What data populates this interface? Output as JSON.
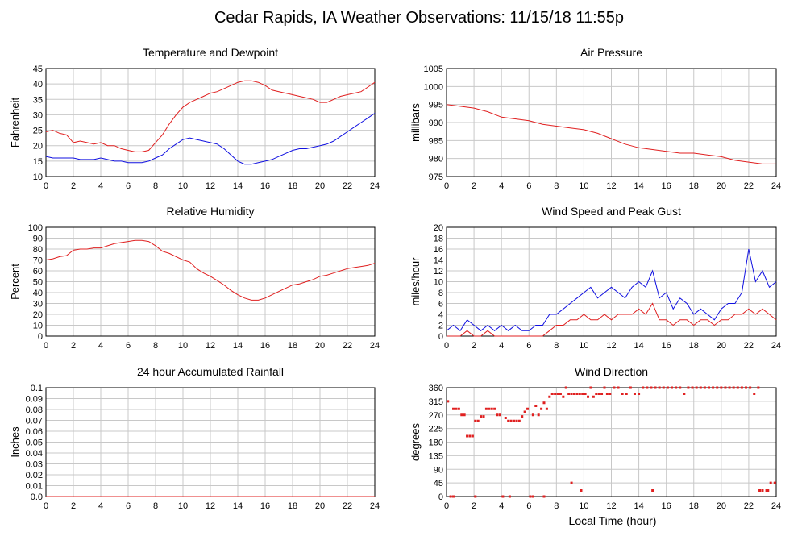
{
  "page": {
    "title": "Cedar Rapids, IA Weather Observations: 11/15/18 11:55p"
  },
  "colors": {
    "red": "#e02020",
    "blue": "#1010e0",
    "grid": "#c8c8c8",
    "frame": "#000000"
  },
  "xaxis_label": "Local Time (hour)",
  "chart_data": [
    {
      "id": "temp",
      "type": "line",
      "title": "Temperature and Dewpoint",
      "xlabel": "",
      "ylabel": "Fahrenheit",
      "xlim": [
        0,
        24
      ],
      "ylim": [
        10,
        45
      ],
      "xticks": [
        0,
        2,
        4,
        6,
        8,
        10,
        12,
        14,
        16,
        18,
        20,
        22,
        24
      ],
      "yticks": [
        10,
        15,
        20,
        25,
        30,
        35,
        40,
        45
      ],
      "series": [
        {
          "color": "#e02020",
          "x": [
            0,
            0.5,
            1,
            1.5,
            2,
            2.5,
            3,
            3.5,
            4,
            4.5,
            5,
            5.5,
            6,
            6.5,
            7,
            7.5,
            8,
            8.5,
            9,
            9.5,
            10,
            10.5,
            11,
            11.5,
            12,
            12.5,
            13,
            13.5,
            14,
            14.5,
            15,
            15.5,
            16,
            16.5,
            17,
            17.5,
            18,
            18.5,
            19,
            19.5,
            20,
            20.5,
            21,
            21.5,
            22,
            22.5,
            23,
            23.5,
            24
          ],
          "y": [
            24.5,
            25,
            24,
            23.5,
            21,
            21.5,
            21,
            20.5,
            21,
            20,
            20,
            19,
            18.5,
            18,
            18,
            18.5,
            21,
            23.5,
            27,
            30,
            32.5,
            34,
            35,
            36,
            37,
            37.5,
            38.5,
            39.5,
            40.5,
            41,
            41,
            40.5,
            39.5,
            38,
            37.5,
            37,
            36.5,
            36,
            35.5,
            35,
            34,
            34,
            35,
            36,
            36.5,
            37,
            37.5,
            39,
            40.5
          ]
        },
        {
          "color": "#1010e0",
          "x": [
            0,
            0.5,
            1,
            1.5,
            2,
            2.5,
            3,
            3.5,
            4,
            4.5,
            5,
            5.5,
            6,
            6.5,
            7,
            7.5,
            8,
            8.5,
            9,
            9.5,
            10,
            10.5,
            11,
            11.5,
            12,
            12.5,
            13,
            13.5,
            14,
            14.5,
            15,
            15.5,
            16,
            16.5,
            17,
            17.5,
            18,
            18.5,
            19,
            19.5,
            20,
            20.5,
            21,
            21.5,
            22,
            22.5,
            23,
            23.5,
            24
          ],
          "y": [
            16.5,
            16,
            16,
            16,
            16,
            15.5,
            15.5,
            15.5,
            16,
            15.5,
            15,
            15,
            14.5,
            14.5,
            14.5,
            15,
            16,
            17,
            19,
            20.5,
            22,
            22.5,
            22,
            21.5,
            21,
            20.5,
            19,
            17,
            15,
            14,
            14,
            14.5,
            15,
            15.5,
            16.5,
            17.5,
            18.5,
            19,
            19,
            19.5,
            20,
            20.5,
            21.5,
            23,
            24.5,
            26,
            27.5,
            29,
            30.5
          ]
        }
      ]
    },
    {
      "id": "pressure",
      "type": "line",
      "title": "Air Pressure",
      "xlabel": "",
      "ylabel": "millibars",
      "xlim": [
        0,
        24
      ],
      "ylim": [
        975,
        1005
      ],
      "xticks": [
        0,
        2,
        4,
        6,
        8,
        10,
        12,
        14,
        16,
        18,
        20,
        22,
        24
      ],
      "yticks": [
        975,
        980,
        985,
        990,
        995,
        1000,
        1005
      ],
      "series": [
        {
          "color": "#e02020",
          "x": [
            0,
            1,
            2,
            3,
            4,
            5,
            6,
            7,
            8,
            9,
            10,
            11,
            12,
            13,
            14,
            15,
            16,
            17,
            18,
            19,
            20,
            21,
            22,
            23,
            24
          ],
          "y": [
            995,
            994.5,
            994,
            993,
            991.5,
            991,
            990.5,
            989.5,
            989,
            988.5,
            988,
            987,
            985.5,
            984,
            983,
            982.5,
            982,
            981.5,
            981.5,
            981,
            980.5,
            979.5,
            979,
            978.5,
            978.5
          ]
        }
      ]
    },
    {
      "id": "humidity",
      "type": "line",
      "title": "Relative Humidity",
      "xlabel": "",
      "ylabel": "Percent",
      "xlim": [
        0,
        24
      ],
      "ylim": [
        0,
        100
      ],
      "xticks": [
        0,
        2,
        4,
        6,
        8,
        10,
        12,
        14,
        16,
        18,
        20,
        22,
        24
      ],
      "yticks": [
        0,
        10,
        20,
        30,
        40,
        50,
        60,
        70,
        80,
        90,
        100
      ],
      "series": [
        {
          "color": "#e02020",
          "x": [
            0,
            0.5,
            1,
            1.5,
            2,
            2.5,
            3,
            3.5,
            4,
            4.5,
            5,
            5.5,
            6,
            6.5,
            7,
            7.5,
            8,
            8.5,
            9,
            9.5,
            10,
            10.5,
            11,
            11.5,
            12,
            12.5,
            13,
            13.5,
            14,
            14.5,
            15,
            15.5,
            16,
            16.5,
            17,
            17.5,
            18,
            18.5,
            19,
            19.5,
            20,
            20.5,
            21,
            21.5,
            22,
            22.5,
            23,
            23.5,
            24
          ],
          "y": [
            70,
            71,
            73,
            74,
            79,
            80,
            80,
            81,
            81,
            83,
            85,
            86,
            87,
            88,
            88,
            87,
            83,
            78,
            76,
            73,
            70,
            68,
            62,
            58,
            55,
            51,
            47,
            42,
            38,
            35,
            33,
            33,
            35,
            38,
            41,
            44,
            47,
            48,
            50,
            52,
            55,
            56,
            58,
            60,
            62,
            63,
            64,
            65,
            67
          ]
        }
      ]
    },
    {
      "id": "wind",
      "type": "line",
      "title": "Wind Speed and Peak Gust",
      "xlabel": "",
      "ylabel": "miles/hour",
      "xlim": [
        0,
        24
      ],
      "ylim": [
        0,
        20
      ],
      "xticks": [
        0,
        2,
        4,
        6,
        8,
        10,
        12,
        14,
        16,
        18,
        20,
        22,
        24
      ],
      "yticks": [
        0,
        2,
        4,
        6,
        8,
        10,
        12,
        14,
        16,
        18,
        20
      ],
      "series": [
        {
          "color": "#1010e0",
          "x": [
            0,
            0.5,
            1,
            1.5,
            2,
            2.5,
            3,
            3.5,
            4,
            4.5,
            5,
            5.5,
            6,
            6.5,
            7,
            7.5,
            8,
            8.5,
            9,
            9.5,
            10,
            10.5,
            11,
            11.5,
            12,
            12.5,
            13,
            13.5,
            14,
            14.5,
            15,
            15.5,
            16,
            16.5,
            17,
            17.5,
            18,
            18.5,
            19,
            19.5,
            20,
            20.5,
            21,
            21.5,
            22,
            22.5,
            23,
            23.5,
            24
          ],
          "y": [
            1,
            2,
            1,
            3,
            2,
            1,
            2,
            1,
            2,
            1,
            2,
            1,
            1,
            2,
            2,
            4,
            4,
            5,
            6,
            7,
            8,
            9,
            7,
            8,
            9,
            8,
            7,
            9,
            10,
            9,
            12,
            7,
            8,
            5,
            7,
            6,
            4,
            5,
            4,
            3,
            5,
            6,
            6,
            8,
            16,
            10,
            12,
            9,
            10
          ]
        },
        {
          "color": "#e02020",
          "x": [
            0,
            0.5,
            1,
            1.5,
            2,
            2.5,
            3,
            3.5,
            4,
            4.5,
            5,
            5.5,
            6,
            6.5,
            7,
            7.5,
            8,
            8.5,
            9,
            9.5,
            10,
            10.5,
            11,
            11.5,
            12,
            12.5,
            13,
            13.5,
            14,
            14.5,
            15,
            15.5,
            16,
            16.5,
            17,
            17.5,
            18,
            18.5,
            19,
            19.5,
            20,
            20.5,
            21,
            21.5,
            22,
            22.5,
            23,
            23.5,
            24
          ],
          "y": [
            0,
            0,
            0,
            1,
            0,
            0,
            1,
            0,
            0,
            0,
            0,
            0,
            0,
            0,
            0,
            1,
            2,
            2,
            3,
            3,
            4,
            3,
            3,
            4,
            3,
            4,
            4,
            4,
            5,
            4,
            6,
            3,
            3,
            2,
            3,
            3,
            2,
            3,
            3,
            2,
            3,
            3,
            4,
            4,
            5,
            4,
            5,
            4,
            3
          ]
        }
      ]
    },
    {
      "id": "rain",
      "type": "line",
      "title": "24 hour Accumulated Rainfall",
      "xlabel": "",
      "ylabel": "Inches",
      "xlim": [
        0,
        24
      ],
      "ylim": [
        0,
        0.1
      ],
      "xticks": [
        0,
        2,
        4,
        6,
        8,
        10,
        12,
        14,
        16,
        18,
        20,
        22,
        24
      ],
      "yticks": [
        0,
        0.01,
        0.02,
        0.03,
        0.04,
        0.05,
        0.06,
        0.07,
        0.08,
        0.09,
        0.1
      ],
      "ytick_labels": [
        "0.0",
        "0.01",
        "0.02",
        "0.03",
        "0.04",
        "0.05",
        "0.06",
        "0.07",
        "0.08",
        "0.09",
        "0.1"
      ],
      "series": [
        {
          "color": "#e02020",
          "x": [
            0,
            24
          ],
          "y": [
            0,
            0
          ]
        }
      ]
    },
    {
      "id": "direction",
      "type": "scatter",
      "title": "Wind Direction",
      "xlabel": "Local Time (hour)",
      "ylabel": "degrees",
      "xlim": [
        0,
        24
      ],
      "ylim": [
        0,
        360
      ],
      "xticks": [
        0,
        2,
        4,
        6,
        8,
        10,
        12,
        14,
        16,
        18,
        20,
        22,
        24
      ],
      "yticks": [
        0,
        45,
        90,
        135,
        180,
        225,
        270,
        315,
        360
      ],
      "series": [
        {
          "color": "#e02020",
          "x": [
            0.1,
            0.3,
            0.5,
            0.7,
            0.9,
            1.1,
            1.3,
            1.5,
            1.7,
            1.9,
            2.1,
            2.3,
            2.5,
            2.7,
            2.9,
            3.1,
            3.3,
            3.5,
            3.7,
            3.9,
            4.1,
            4.3,
            4.5,
            4.7,
            4.9,
            5.1,
            5.3,
            5.5,
            5.7,
            5.9,
            6.1,
            6.3,
            6.5,
            6.7,
            6.9,
            7.1,
            7.3,
            7.5,
            7.7,
            7.9,
            8.1,
            8.3,
            8.5,
            8.7,
            8.9,
            9.1,
            9.3,
            9.5,
            9.7,
            9.9,
            10.1,
            10.3,
            10.5,
            10.7,
            10.9,
            11.1,
            11.3,
            11.5,
            11.7,
            11.9,
            12.2,
            12.5,
            12.8,
            13.1,
            13.4,
            13.7,
            14,
            14.3,
            14.6,
            14.9,
            15.2,
            15.5,
            15.8,
            16.1,
            16.4,
            16.7,
            17,
            17.3,
            17.6,
            17.9,
            18.2,
            18.5,
            18.8,
            19.1,
            19.4,
            19.7,
            20,
            20.3,
            20.6,
            20.9,
            21.2,
            21.5,
            21.8,
            22.1,
            22.4,
            22.7,
            23,
            23.3,
            23.6,
            23.9,
            0.5,
            2.1,
            4.6,
            6.3,
            7.1,
            9.1,
            9.8,
            15.0,
            22.8,
            23.4
          ],
          "y": [
            315,
            0,
            290,
            290,
            290,
            270,
            270,
            200,
            200,
            200,
            250,
            250,
            265,
            265,
            290,
            290,
            290,
            290,
            270,
            270,
            0,
            260,
            250,
            250,
            250,
            250,
            250,
            265,
            280,
            290,
            0,
            270,
            300,
            270,
            290,
            310,
            290,
            330,
            340,
            340,
            340,
            340,
            330,
            360,
            340,
            340,
            340,
            340,
            340,
            340,
            340,
            330,
            360,
            330,
            340,
            340,
            340,
            360,
            340,
            340,
            360,
            360,
            340,
            340,
            360,
            340,
            340,
            360,
            360,
            360,
            360,
            360,
            360,
            360,
            360,
            360,
            360,
            340,
            360,
            360,
            360,
            360,
            360,
            360,
            360,
            360,
            360,
            360,
            360,
            360,
            360,
            360,
            360,
            360,
            340,
            360,
            20,
            20,
            45,
            45,
            0,
            0,
            0,
            0,
            0,
            45,
            20,
            20,
            20,
            20
          ]
        }
      ]
    }
  ]
}
